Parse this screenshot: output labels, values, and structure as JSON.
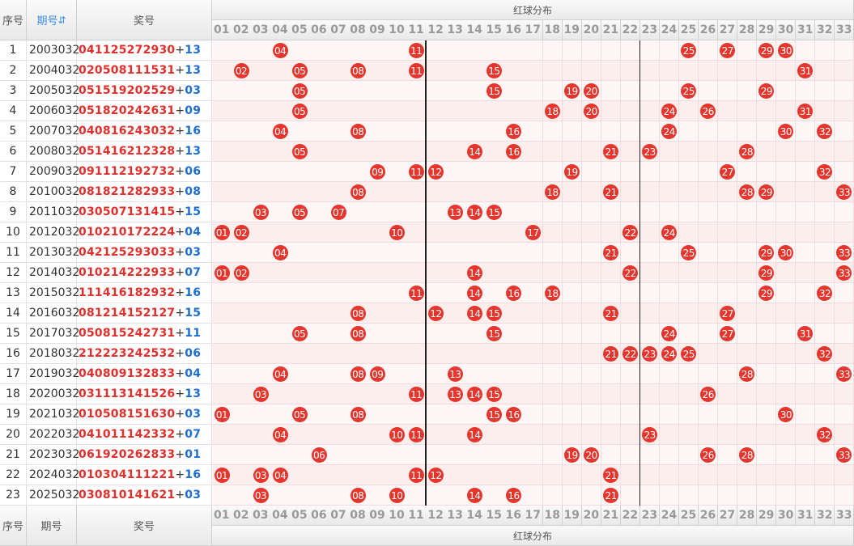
{
  "header": {
    "columns": [
      "序号",
      "期号",
      "奖号"
    ],
    "group": "红球分布",
    "numbers": [
      "01",
      "02",
      "03",
      "04",
      "05",
      "06",
      "07",
      "08",
      "09",
      "10",
      "11",
      "12",
      "13",
      "14",
      "15",
      "16",
      "17",
      "18",
      "19",
      "20",
      "21",
      "22",
      "23",
      "24",
      "25",
      "26",
      "27",
      "28",
      "29",
      "30",
      "31",
      "32",
      "33"
    ]
  },
  "separator": "+",
  "rows": [
    {
      "seq": "1",
      "period": "2003032",
      "reds": [
        "04",
        "11",
        "25",
        "27",
        "29",
        "30"
      ],
      "blue": "13"
    },
    {
      "seq": "2",
      "period": "2004032",
      "reds": [
        "02",
        "05",
        "08",
        "11",
        "15",
        "31"
      ],
      "blue": "13"
    },
    {
      "seq": "3",
      "period": "2005032",
      "reds": [
        "05",
        "15",
        "19",
        "20",
        "25",
        "29"
      ],
      "blue": "03"
    },
    {
      "seq": "4",
      "period": "2006032",
      "reds": [
        "05",
        "18",
        "20",
        "24",
        "26",
        "31"
      ],
      "blue": "09"
    },
    {
      "seq": "5",
      "period": "2007032",
      "reds": [
        "04",
        "08",
        "16",
        "24",
        "30",
        "32"
      ],
      "blue": "16"
    },
    {
      "seq": "6",
      "period": "2008032",
      "reds": [
        "05",
        "14",
        "16",
        "21",
        "23",
        "28"
      ],
      "blue": "13"
    },
    {
      "seq": "7",
      "period": "2009032",
      "reds": [
        "09",
        "11",
        "12",
        "19",
        "27",
        "32"
      ],
      "blue": "06"
    },
    {
      "seq": "8",
      "period": "2010032",
      "reds": [
        "08",
        "18",
        "21",
        "28",
        "29",
        "33"
      ],
      "blue": "08"
    },
    {
      "seq": "9",
      "period": "2011032",
      "reds": [
        "03",
        "05",
        "07",
        "13",
        "14",
        "15"
      ],
      "blue": "15"
    },
    {
      "seq": "10",
      "period": "2012032",
      "reds": [
        "01",
        "02",
        "10",
        "17",
        "22",
        "24"
      ],
      "blue": "04"
    },
    {
      "seq": "11",
      "period": "2013032",
      "reds": [
        "04",
        "21",
        "25",
        "29",
        "30",
        "33"
      ],
      "blue": "03"
    },
    {
      "seq": "12",
      "period": "2014032",
      "reds": [
        "01",
        "02",
        "14",
        "22",
        "29",
        "33"
      ],
      "blue": "07"
    },
    {
      "seq": "13",
      "period": "2015032",
      "reds": [
        "11",
        "14",
        "16",
        "18",
        "29",
        "32"
      ],
      "blue": "16"
    },
    {
      "seq": "14",
      "period": "2016032",
      "reds": [
        "08",
        "12",
        "14",
        "15",
        "21",
        "27"
      ],
      "blue": "15"
    },
    {
      "seq": "15",
      "period": "2017032",
      "reds": [
        "05",
        "08",
        "15",
        "24",
        "27",
        "31"
      ],
      "blue": "11"
    },
    {
      "seq": "16",
      "period": "2018032",
      "reds": [
        "21",
        "22",
        "23",
        "24",
        "25",
        "32"
      ],
      "blue": "06"
    },
    {
      "seq": "17",
      "period": "2019032",
      "reds": [
        "04",
        "08",
        "09",
        "13",
        "28",
        "33"
      ],
      "blue": "04"
    },
    {
      "seq": "18",
      "period": "2020032",
      "reds": [
        "03",
        "11",
        "13",
        "14",
        "15",
        "26"
      ],
      "blue": "13"
    },
    {
      "seq": "19",
      "period": "2021032",
      "reds": [
        "01",
        "05",
        "08",
        "15",
        "16",
        "30"
      ],
      "blue": "03"
    },
    {
      "seq": "20",
      "period": "2022032",
      "reds": [
        "04",
        "10",
        "11",
        "14",
        "23",
        "32"
      ],
      "blue": "07"
    },
    {
      "seq": "21",
      "period": "2023032",
      "reds": [
        "06",
        "19",
        "20",
        "26",
        "28",
        "33"
      ],
      "blue": "01"
    },
    {
      "seq": "22",
      "period": "2024032",
      "reds": [
        "01",
        "03",
        "04",
        "11",
        "12",
        "21"
      ],
      "blue": "16"
    },
    {
      "seq": "23",
      "period": "2025032",
      "reds": [
        "03",
        "08",
        "10",
        "14",
        "16",
        "21"
      ],
      "blue": "03"
    }
  ]
}
